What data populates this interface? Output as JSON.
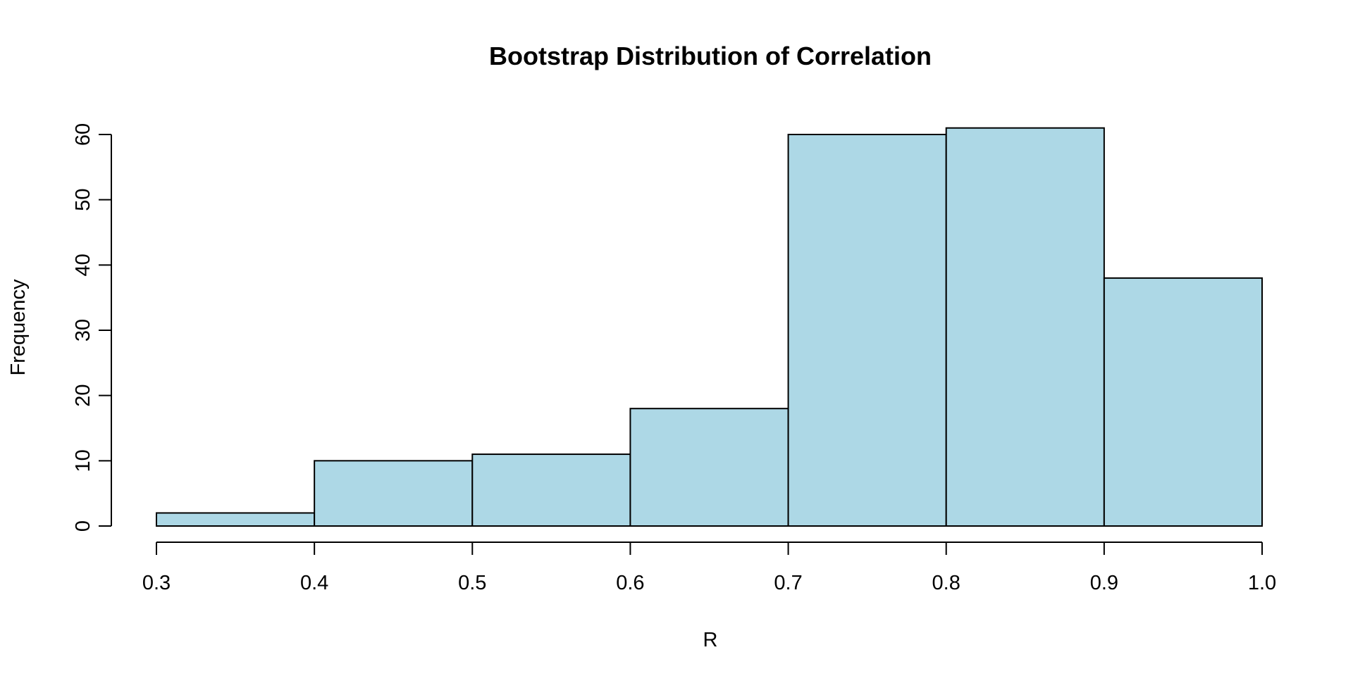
{
  "chart_data": {
    "type": "bar",
    "subtype": "histogram",
    "title": "Bootstrap Distribution of Correlation",
    "xlabel": "R",
    "ylabel": "Frequency",
    "bins": [
      {
        "from": 0.3,
        "to": 0.4,
        "count": 2
      },
      {
        "from": 0.4,
        "to": 0.5,
        "count": 10
      },
      {
        "from": 0.5,
        "to": 0.6,
        "count": 11
      },
      {
        "from": 0.6,
        "to": 0.7,
        "count": 18
      },
      {
        "from": 0.7,
        "to": 0.8,
        "count": 60
      },
      {
        "from": 0.8,
        "to": 0.9,
        "count": 61
      },
      {
        "from": 0.9,
        "to": 1.0,
        "count": 38
      }
    ],
    "xlim": [
      0.3,
      1.0
    ],
    "ylim": [
      0,
      60
    ],
    "x_ticks": [
      "0.3",
      "0.4",
      "0.5",
      "0.6",
      "0.7",
      "0.8",
      "0.9",
      "1.0"
    ],
    "y_ticks": [
      "0",
      "10",
      "20",
      "30",
      "40",
      "50",
      "60"
    ],
    "bar_color": "#add8e6",
    "grid": false,
    "legend": "none"
  }
}
